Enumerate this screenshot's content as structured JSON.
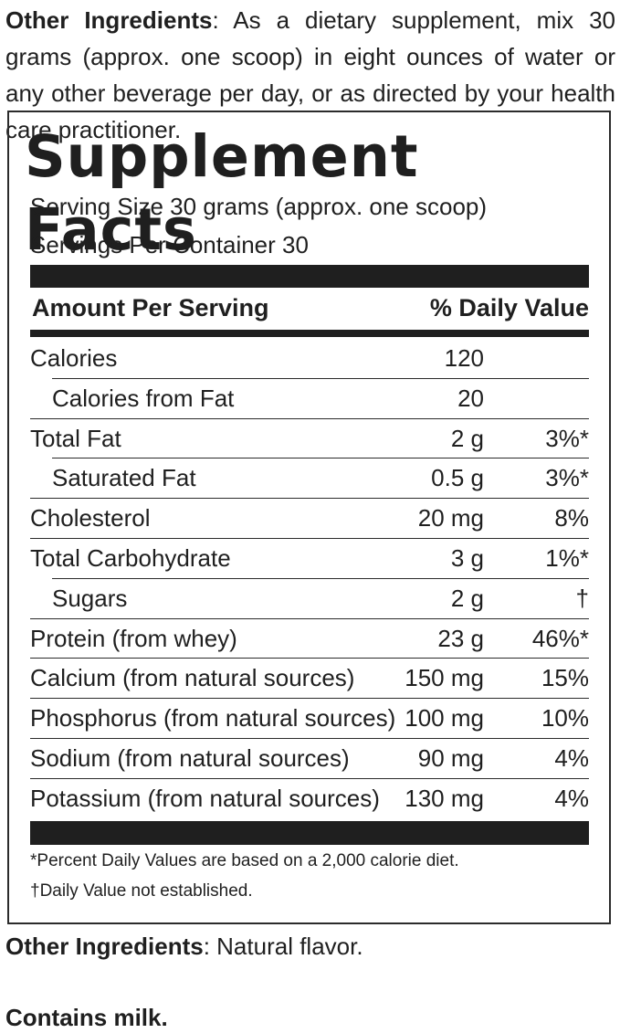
{
  "top": {
    "label": "Other Ingredients",
    "text": ": As a dietary supplement, mix 30 grams (approx. one scoop) in eight ounces of water or any other beverage per day, or as directed by your health care practitioner."
  },
  "panel": {
    "title": "Supplement Facts",
    "serving_size": "Serving Size 30 grams (approx. one scoop)",
    "servings_per_container": "Servings Per Container 30",
    "header_left": "Amount Per Serving",
    "header_right": "% Daily Value",
    "rows": [
      {
        "name": "Calories",
        "amount": "120",
        "dv": ""
      },
      {
        "name": "Calories from Fat",
        "amount": "20",
        "dv": ""
      },
      {
        "name": "Total Fat",
        "amount": "2 g",
        "dv": "3%*"
      },
      {
        "name": "Saturated Fat",
        "amount": "0.5 g",
        "dv": "3%*"
      },
      {
        "name": "Cholesterol",
        "amount": "20 mg",
        "dv": "8%"
      },
      {
        "name": "Total Carbohydrate",
        "amount": "3 g",
        "dv": "1%*"
      },
      {
        "name": "Sugars",
        "amount": "2 g",
        "dv": "†"
      },
      {
        "name": "Protein (from whey)",
        "amount": "23 g",
        "dv": "46%*"
      },
      {
        "name": "Calcium (from natural sources)",
        "amount": "150 mg",
        "dv": "15%"
      },
      {
        "name": "Phosphorus (from natural sources)",
        "amount": "100 mg",
        "dv": "10%"
      },
      {
        "name": "Sodium (from natural sources)",
        "amount": "90 mg",
        "dv": "4%"
      },
      {
        "name": "Potassium (from natural sources)",
        "amount": "130 mg",
        "dv": "4%"
      }
    ],
    "footnote_1": "*Percent Daily Values are based on a 2,000 calorie diet.",
    "footnote_2": "†Daily Value not established."
  },
  "bottom": {
    "other_label": "Other Ingredients",
    "other_text": ": Natural flavor.",
    "allergen": "Contains milk."
  }
}
